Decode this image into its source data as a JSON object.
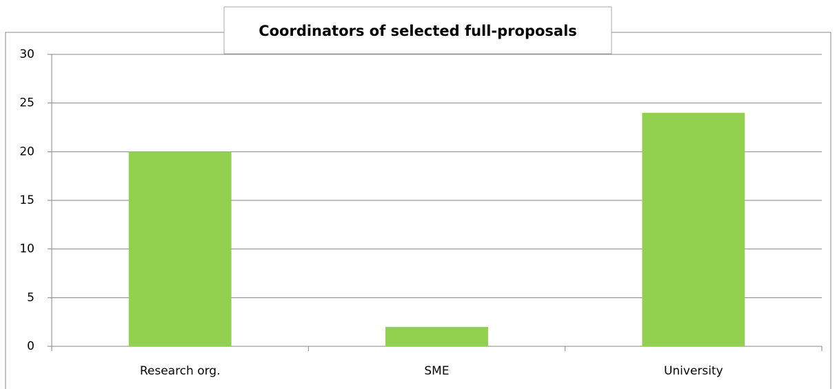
{
  "chart_data": {
    "type": "bar",
    "title": "Coordinators of selected full-proposals",
    "categories": [
      "Research org.",
      "SME",
      "University"
    ],
    "values": [
      20,
      2,
      24
    ],
    "color": "#92d050",
    "ylim": [
      0,
      30
    ],
    "yticks": [
      0,
      5,
      10,
      15,
      20,
      25,
      30
    ],
    "grid": true
  }
}
